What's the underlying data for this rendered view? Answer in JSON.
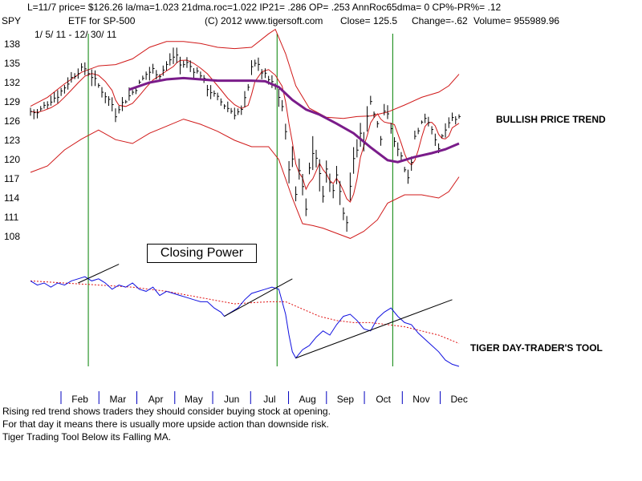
{
  "header": {
    "line1": "L=11/7  price= $126.26  la/ma=1.023 21dma.roc=1.022 IP21= .286 OP= .253 AnnRoc65dma= 0 CP%-PR%=  .12",
    "symbol": "SPY",
    "etf_label": "ETF for SP-500",
    "copyright": "(C) 2012 www.tigersoft.com",
    "close": "Close=  125.5",
    "change": "Change=-.62",
    "volume": "Volume=  955989.96",
    "date_range": "1/ 5/ 11 - 12/ 30/ 11"
  },
  "labels": {
    "bullish": "BULLISH PRICE TREND",
    "tool": "TIGER DAY-TRADER'S TOOL",
    "closing_power": "Closing Power"
  },
  "notes": [
    "Rising red trend shows traders they should consider buying stock at opening.",
    " For that day it means there is usually more upside action than downside risk.",
    "Tiger Trading Tool Below its Falling MA."
  ],
  "colors": {
    "price_bars": "#000000",
    "band": "#d01818",
    "ma": "#7a1c8a",
    "closing_power": "#1010e0",
    "cp_ma": "#e01010",
    "vline": "#008000",
    "trendline": "#000000",
    "month_tick": "#0000c0"
  },
  "chart_data": [
    {
      "type": "line",
      "title": "SPY",
      "subtitle": "ETF for SP-500",
      "y_ticks": [
        108,
        111,
        114,
        117,
        120,
        123,
        126,
        129,
        132,
        135,
        138
      ],
      "ylim": [
        107,
        140
      ],
      "x_categories": [
        "Feb",
        "Mar",
        "Apr",
        "May",
        "Jun",
        "Jul",
        "Aug",
        "Sep",
        "Oct",
        "Nov",
        "Dec"
      ],
      "x_day_range": [
        0,
        252
      ],
      "signal_days": [
        34,
        145,
        213
      ],
      "price_close": [
        [
          0,
          127.5
        ],
        [
          4,
          127.2
        ],
        [
          8,
          128.3
        ],
        [
          12,
          129.3
        ],
        [
          16,
          130.0
        ],
        [
          20,
          131.3
        ],
        [
          24,
          132.7
        ],
        [
          28,
          133.8
        ],
        [
          32,
          134.2
        ],
        [
          36,
          133.0
        ],
        [
          40,
          131.5
        ],
        [
          44,
          130.0
        ],
        [
          48,
          128.6
        ],
        [
          50,
          127.0
        ],
        [
          52,
          128.2
        ],
        [
          56,
          129.3
        ],
        [
          60,
          130.5
        ],
        [
          64,
          131.8
        ],
        [
          68,
          133.3
        ],
        [
          72,
          134.0
        ],
        [
          76,
          133.2
        ],
        [
          80,
          134.8
        ],
        [
          84,
          136.0
        ],
        [
          86,
          136.3
        ],
        [
          88,
          134.7
        ],
        [
          92,
          135.0
        ],
        [
          96,
          134.0
        ],
        [
          100,
          133.3
        ],
        [
          104,
          131.2
        ],
        [
          108,
          130.0
        ],
        [
          112,
          129.0
        ],
        [
          116,
          128.0
        ],
        [
          120,
          127.2
        ],
        [
          124,
          127.6
        ],
        [
          128,
          131.0
        ],
        [
          130,
          134.8
        ],
        [
          132,
          135.2
        ],
        [
          136,
          133.7
        ],
        [
          140,
          132.4
        ],
        [
          144,
          131.3
        ],
        [
          148,
          128.3
        ],
        [
          150,
          124.0
        ],
        [
          152,
          118.8
        ],
        [
          154,
          119.8
        ],
        [
          156,
          114.6
        ],
        [
          158,
          118.5
        ],
        [
          160,
          115.7
        ],
        [
          162,
          112.7
        ],
        [
          164,
          118.6
        ],
        [
          166,
          121.0
        ],
        [
          168,
          120.5
        ],
        [
          170,
          117.5
        ],
        [
          172,
          114.7
        ],
        [
          174,
          118.4
        ],
        [
          176,
          116.3
        ],
        [
          178,
          115.6
        ],
        [
          180,
          118.0
        ],
        [
          182,
          115.0
        ],
        [
          184,
          112.0
        ],
        [
          186,
          110.5
        ],
        [
          188,
          116.0
        ],
        [
          190,
          119.8
        ],
        [
          192,
          121.5
        ],
        [
          194,
          124.0
        ],
        [
          196,
          123.0
        ],
        [
          198,
          126.5
        ],
        [
          200,
          129.4
        ],
        [
          202,
          127.2
        ],
        [
          204,
          125.4
        ],
        [
          206,
          123.2
        ],
        [
          208,
          127.6
        ],
        [
          210,
          126.7
        ],
        [
          212,
          125.0
        ],
        [
          214,
          122.5
        ],
        [
          216,
          121.9
        ],
        [
          218,
          120.7
        ],
        [
          220,
          118.5
        ],
        [
          222,
          117.6
        ],
        [
          224,
          119.8
        ],
        [
          226,
          123.5
        ],
        [
          228,
          124.8
        ],
        [
          230,
          125.7
        ],
        [
          232,
          126.6
        ],
        [
          234,
          126.0
        ],
        [
          236,
          124.9
        ],
        [
          238,
          123.5
        ],
        [
          240,
          121.3
        ],
        [
          242,
          123.5
        ],
        [
          244,
          124.6
        ],
        [
          246,
          125.3
        ],
        [
          248,
          126.4
        ],
        [
          252,
          126.3
        ]
      ],
      "ma": [
        [
          58,
          130.9
        ],
        [
          70,
          132.0
        ],
        [
          80,
          132.5
        ],
        [
          90,
          132.7
        ],
        [
          100,
          132.5
        ],
        [
          110,
          132.3
        ],
        [
          120,
          132.3
        ],
        [
          130,
          132.3
        ],
        [
          138,
          132.2
        ],
        [
          146,
          131.3
        ],
        [
          154,
          129.3
        ],
        [
          162,
          127.8
        ],
        [
          170,
          127.0
        ],
        [
          180,
          125.6
        ],
        [
          190,
          124.1
        ],
        [
          200,
          121.9
        ],
        [
          210,
          119.9
        ],
        [
          216,
          119.6
        ],
        [
          226,
          120.4
        ],
        [
          236,
          121.0
        ],
        [
          244,
          121.6
        ],
        [
          252,
          122.5
        ]
      ],
      "upper_band": [
        [
          0,
          128.3
        ],
        [
          10,
          129.7
        ],
        [
          20,
          131.8
        ],
        [
          30,
          133.6
        ],
        [
          40,
          134.6
        ],
        [
          50,
          134.8
        ],
        [
          60,
          135.7
        ],
        [
          70,
          137.5
        ],
        [
          80,
          138.4
        ],
        [
          90,
          138.4
        ],
        [
          100,
          138.1
        ],
        [
          110,
          137.5
        ],
        [
          120,
          137.3
        ],
        [
          130,
          137.5
        ],
        [
          140,
          139.6
        ],
        [
          144,
          140.3
        ],
        [
          150,
          136.5
        ],
        [
          156,
          131.5
        ],
        [
          164,
          128.0
        ],
        [
          174,
          126.6
        ],
        [
          184,
          126.4
        ],
        [
          192,
          126.7
        ],
        [
          200,
          126.8
        ],
        [
          210,
          127.4
        ],
        [
          220,
          128.5
        ],
        [
          230,
          129.7
        ],
        [
          240,
          130.5
        ],
        [
          246,
          131.5
        ],
        [
          252,
          133.3
        ]
      ],
      "lower_band": [
        [
          0,
          118.0
        ],
        [
          10,
          119.0
        ],
        [
          20,
          121.5
        ],
        [
          30,
          123.2
        ],
        [
          40,
          124.6
        ],
        [
          50,
          123.1
        ],
        [
          60,
          122.5
        ],
        [
          70,
          124.1
        ],
        [
          80,
          125.2
        ],
        [
          90,
          126.3
        ],
        [
          100,
          125.5
        ],
        [
          110,
          124.4
        ],
        [
          120,
          123.0
        ],
        [
          130,
          122.0
        ],
        [
          140,
          122.0
        ],
        [
          146,
          120.0
        ],
        [
          154,
          114.0
        ],
        [
          160,
          110.0
        ],
        [
          166,
          109.7
        ],
        [
          172,
          109.3
        ],
        [
          180,
          108.5
        ],
        [
          188,
          107.7
        ],
        [
          196,
          108.8
        ],
        [
          204,
          110.6
        ],
        [
          210,
          113.2
        ],
        [
          220,
          114.5
        ],
        [
          230,
          114.5
        ],
        [
          240,
          114.0
        ],
        [
          246,
          115.0
        ],
        [
          252,
          117.3
        ]
      ]
    },
    {
      "type": "line",
      "title": "Closing Power",
      "ylim": [
        0,
        100
      ],
      "x_day_range": [
        0,
        252
      ],
      "closing_power": [
        [
          0,
          82
        ],
        [
          4,
          78
        ],
        [
          8,
          80
        ],
        [
          12,
          76
        ],
        [
          16,
          80
        ],
        [
          20,
          78
        ],
        [
          24,
          82
        ],
        [
          28,
          84
        ],
        [
          32,
          86
        ],
        [
          36,
          82
        ],
        [
          40,
          84
        ],
        [
          44,
          80
        ],
        [
          48,
          74
        ],
        [
          52,
          78
        ],
        [
          56,
          76
        ],
        [
          60,
          80
        ],
        [
          64,
          74
        ],
        [
          68,
          72
        ],
        [
          72,
          76
        ],
        [
          76,
          68
        ],
        [
          80,
          72
        ],
        [
          84,
          70
        ],
        [
          88,
          68
        ],
        [
          92,
          66
        ],
        [
          96,
          64
        ],
        [
          100,
          62
        ],
        [
          104,
          62
        ],
        [
          108,
          56
        ],
        [
          112,
          52
        ],
        [
          114,
          48
        ],
        [
          118,
          52
        ],
        [
          122,
          56
        ],
        [
          126,
          64
        ],
        [
          130,
          70
        ],
        [
          134,
          72
        ],
        [
          138,
          74
        ],
        [
          142,
          76
        ],
        [
          146,
          74
        ],
        [
          150,
          50
        ],
        [
          152,
          30
        ],
        [
          154,
          14
        ],
        [
          156,
          8
        ],
        [
          160,
          16
        ],
        [
          164,
          20
        ],
        [
          168,
          28
        ],
        [
          172,
          34
        ],
        [
          176,
          30
        ],
        [
          180,
          40
        ],
        [
          184,
          48
        ],
        [
          188,
          50
        ],
        [
          192,
          44
        ],
        [
          196,
          36
        ],
        [
          200,
          34
        ],
        [
          204,
          46
        ],
        [
          208,
          52
        ],
        [
          212,
          56
        ],
        [
          216,
          48
        ],
        [
          220,
          42
        ],
        [
          224,
          40
        ],
        [
          228,
          32
        ],
        [
          232,
          26
        ],
        [
          236,
          20
        ],
        [
          240,
          14
        ],
        [
          244,
          6
        ],
        [
          248,
          2
        ],
        [
          252,
          0
        ]
      ],
      "cp_ma": [
        [
          0,
          82
        ],
        [
          20,
          80
        ],
        [
          40,
          78
        ],
        [
          60,
          76
        ],
        [
          80,
          72
        ],
        [
          100,
          66
        ],
        [
          120,
          60
        ],
        [
          140,
          62
        ],
        [
          150,
          62
        ],
        [
          160,
          55
        ],
        [
          170,
          48
        ],
        [
          180,
          44
        ],
        [
          190,
          42
        ],
        [
          200,
          42
        ],
        [
          210,
          40
        ],
        [
          220,
          38
        ],
        [
          230,
          34
        ],
        [
          240,
          30
        ],
        [
          252,
          22
        ]
      ],
      "trendlines": [
        [
          [
            28,
            80
          ],
          [
            52,
            98
          ]
        ],
        [
          [
            114,
            48
          ],
          [
            154,
            84
          ]
        ],
        [
          [
            156,
            8
          ],
          [
            248,
            64
          ]
        ]
      ]
    }
  ]
}
